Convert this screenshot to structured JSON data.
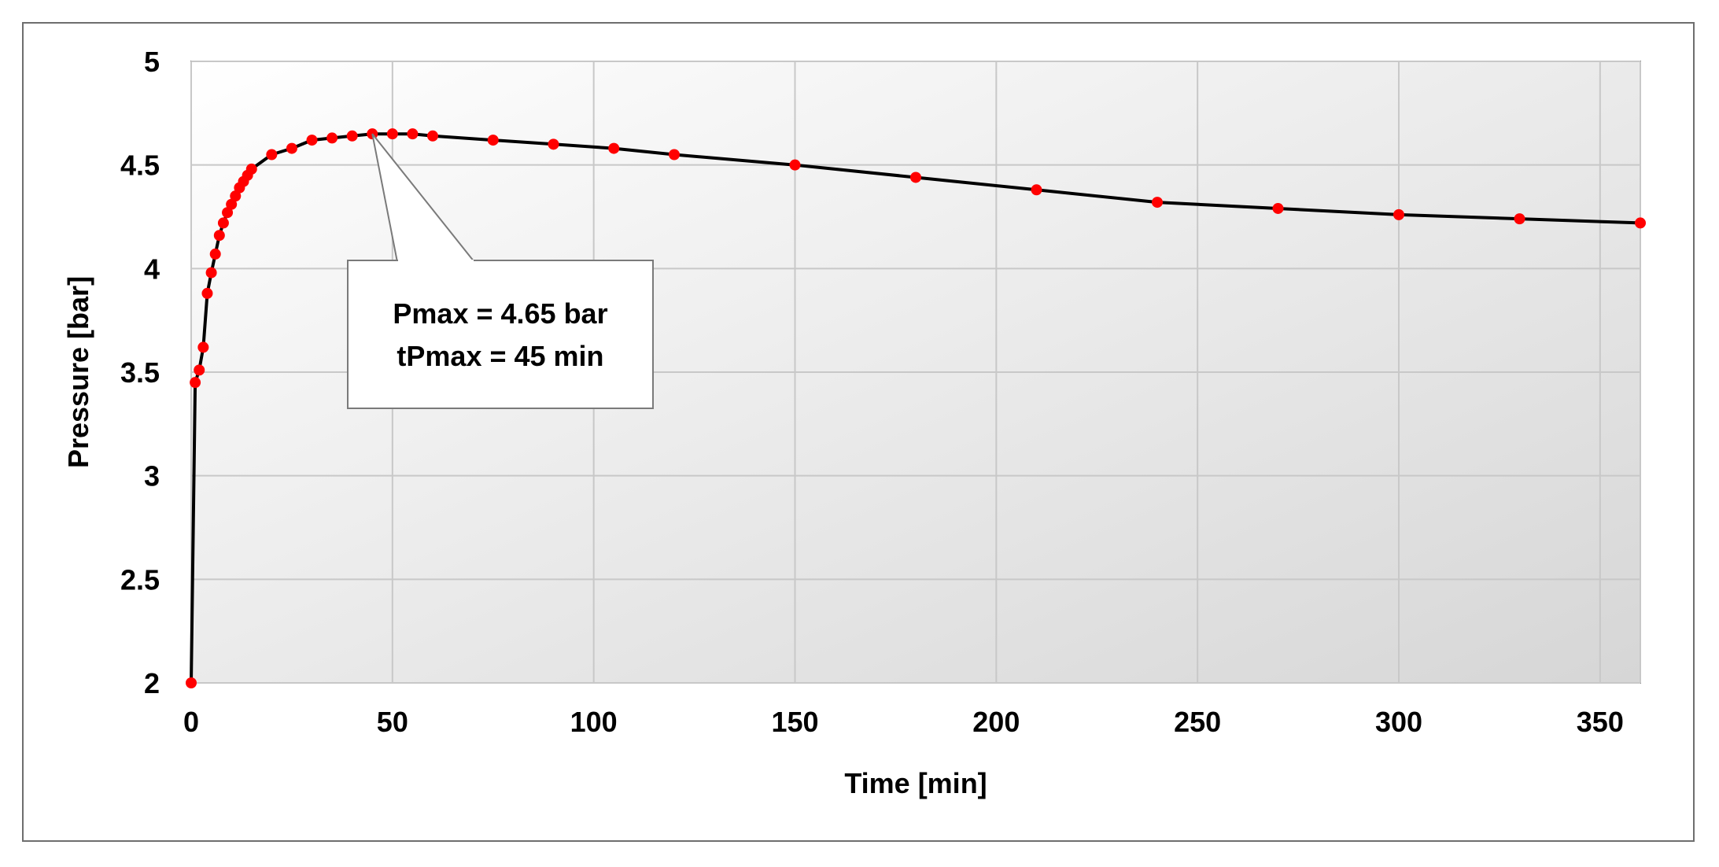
{
  "chart_data": {
    "type": "line",
    "xlabel": "Time [min]",
    "ylabel": "Pressure [bar]",
    "xlim": [
      0,
      360
    ],
    "ylim": [
      2,
      5
    ],
    "xticks": [
      "0",
      "50",
      "100",
      "150",
      "200",
      "250",
      "300",
      "350"
    ],
    "yticks": [
      "2",
      "2.5",
      "3",
      "3.5",
      "4",
      "4.5",
      "5"
    ],
    "grid": true,
    "legend": "none",
    "colors": {
      "line": "#000000",
      "marker": "#ff0000",
      "grid": "#c8c8c8",
      "plot_bg_start": "#ffffff",
      "plot_bg_end": "#d6d6d6"
    },
    "series": [
      {
        "x": [
          0,
          1,
          2,
          3,
          4,
          5,
          6,
          7,
          8,
          9,
          10,
          11,
          12,
          13,
          14,
          15,
          20,
          25,
          30,
          35,
          40,
          45,
          50,
          55,
          60,
          75,
          90,
          105,
          120,
          150,
          180,
          210,
          240,
          270,
          300,
          330,
          360
        ],
        "y": [
          2.0,
          3.45,
          3.51,
          3.62,
          3.88,
          3.98,
          4.07,
          4.16,
          4.22,
          4.27,
          4.31,
          4.35,
          4.39,
          4.42,
          4.45,
          4.48,
          4.55,
          4.58,
          4.62,
          4.63,
          4.64,
          4.65,
          4.65,
          4.65,
          4.64,
          4.62,
          4.6,
          4.58,
          4.55,
          4.5,
          4.44,
          4.38,
          4.32,
          4.29,
          4.26,
          4.24,
          4.22
        ]
      }
    ],
    "annotation": {
      "lines": [
        "Pmax = 4.65 bar",
        "tPmax = 45 min"
      ],
      "points_to": {
        "x": 45,
        "y": 4.65
      }
    }
  }
}
